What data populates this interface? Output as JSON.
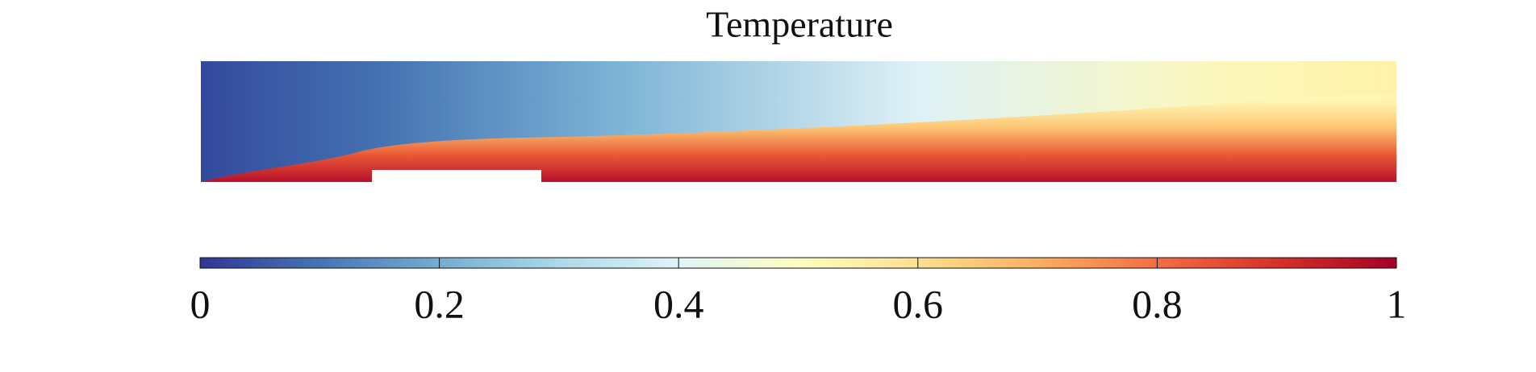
{
  "chart_data": {
    "type": "field",
    "title": "Temperature",
    "clim": [
      0,
      1
    ],
    "ticks": [
      0,
      0.2,
      0.4,
      0.6,
      0.8,
      1
    ],
    "colormap": [
      "#313695",
      "#4575b4",
      "#74add1",
      "#abd9e9",
      "#e0f3f8",
      "#ffffbf",
      "#fee090",
      "#fdae61",
      "#f46d43",
      "#d73027",
      "#a50026"
    ]
  }
}
